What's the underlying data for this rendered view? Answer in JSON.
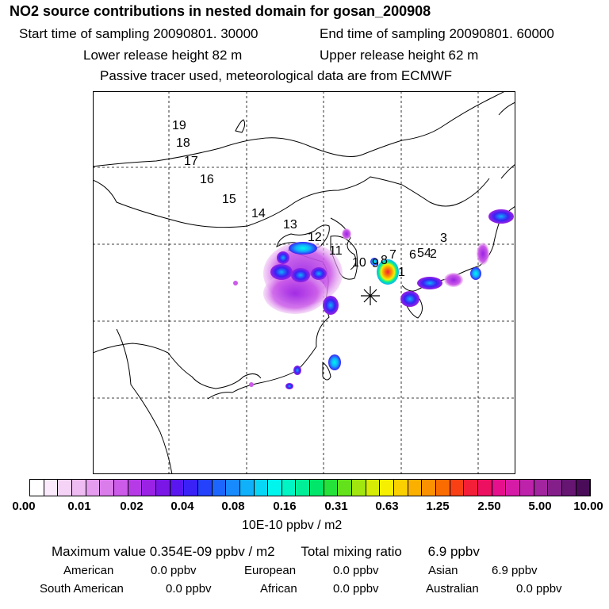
{
  "header": {
    "title": "NO2 source contributions in nested domain for gosan_200908",
    "start_label": "Start time of sampling 20090801. 30000",
    "end_label": "End time of sampling 20090801. 60000",
    "lower_label": "Lower release height   82 m",
    "upper_label": "Upper release height   62 m",
    "note": "Passive tracer used, meteorological data are from ECMWF"
  },
  "map": {
    "trajectory_labels": [
      "19",
      "18",
      "17",
      "16",
      "15",
      "14",
      "13",
      "12",
      "11",
      "10",
      "9",
      "8",
      "7",
      "6",
      "5",
      "4",
      "3",
      "2",
      "1"
    ],
    "receptor_symbol": "asterisk"
  },
  "colorbar": {
    "ticks": [
      "0.00",
      "0.01",
      "0.02",
      "0.04",
      "0.08",
      "0.16",
      "0.31",
      "0.63",
      "1.25",
      "2.50",
      "5.00",
      "10.00"
    ],
    "units": "10E-10 ppbv / m2",
    "colors": [
      "#ffffff",
      "#fbeafb",
      "#f5d3f6",
      "#eebcf2",
      "#e59cee",
      "#da7cea",
      "#cb5be8",
      "#b63be6",
      "#9a22e4",
      "#7a17e6",
      "#5a16ee",
      "#3a21f5",
      "#2442fb",
      "#1d66fd",
      "#178afd",
      "#10b0fb",
      "#08d6f6",
      "#00f6ec",
      "#00f4c4",
      "#00ee98",
      "#00e66a",
      "#25e23a",
      "#63e21c",
      "#a1e60e",
      "#d6ec05",
      "#f6f000",
      "#fad000",
      "#fbb000",
      "#fb9000",
      "#fb6c00",
      "#f84014",
      "#f31e38",
      "#ee1060",
      "#e6108c",
      "#d61ba6",
      "#be22aa",
      "#a2249e",
      "#841f8a",
      "#661672",
      "#4a0c58"
    ]
  },
  "summary": {
    "max_label": "Maximum value  0.354E-09 ppbv / m2",
    "total_label": "Total mixing ratio",
    "total_value": "6.9 ppbv",
    "regions": [
      {
        "name": "American",
        "value": "0.0 ppbv"
      },
      {
        "name": "European",
        "value": "0.0 ppbv"
      },
      {
        "name": "Asian",
        "value": "6.9 ppbv"
      },
      {
        "name": "South American",
        "value": "0.0 ppbv"
      },
      {
        "name": "African",
        "value": "0.0 ppbv"
      },
      {
        "name": "Australian",
        "value": "0.0 ppbv"
      }
    ]
  }
}
